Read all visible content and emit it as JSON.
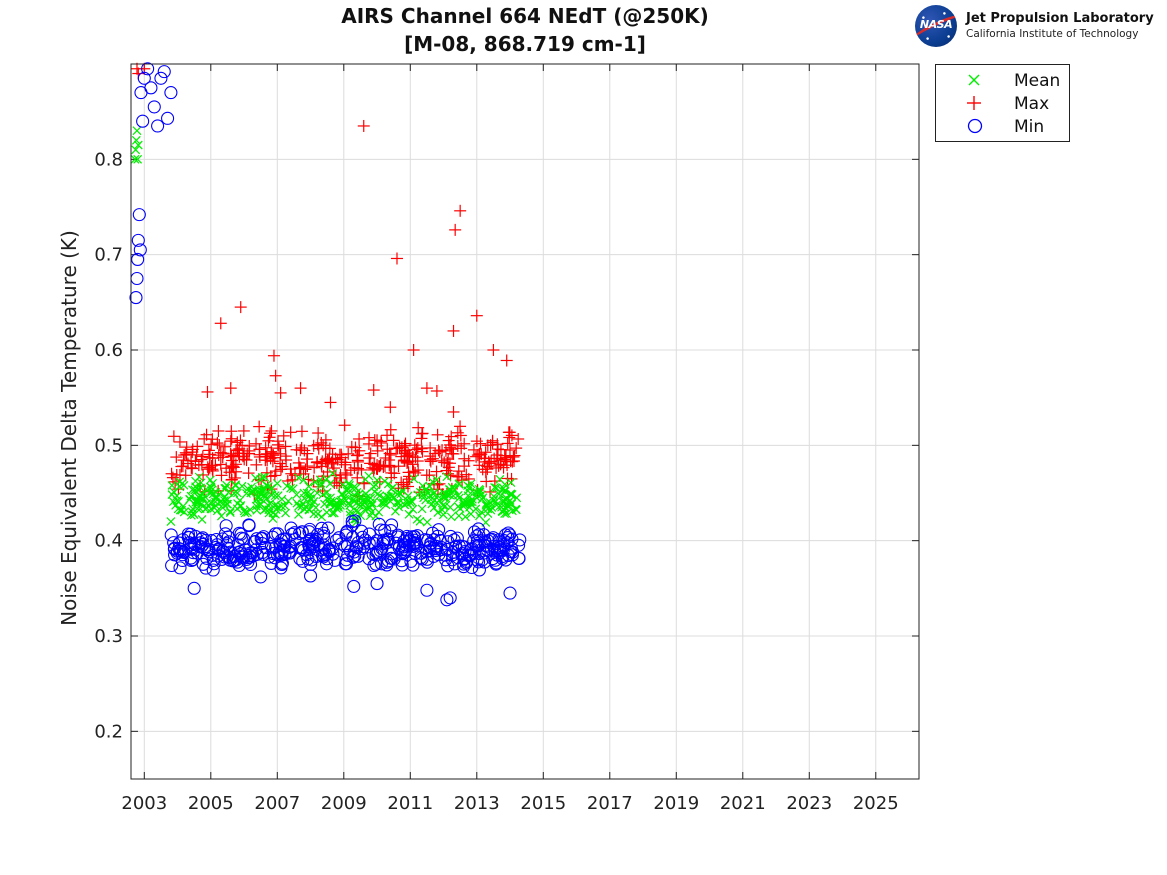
{
  "chart_data": {
    "type": "scatter",
    "title": "AIRS Channel 664 NEdT (@250K)",
    "subtitle": "[M-08, 868.719 cm-1]",
    "xlabel": "",
    "ylabel": "Noise Equivalent Delta Temperature (K)",
    "xlim": [
      2002.6,
      2026.3
    ],
    "ylim": [
      0.15,
      0.9
    ],
    "x_ticks": [
      "2003",
      "2005",
      "2007",
      "2009",
      "2011",
      "2013",
      "2015",
      "2017",
      "2019",
      "2021",
      "2023",
      "2025"
    ],
    "y_ticks": [
      "0.2",
      "0.3",
      "0.4",
      "0.5",
      "0.6",
      "0.7",
      "0.8"
    ],
    "grid": true,
    "legend_position": "outside-top-right",
    "series": [
      {
        "name": "Mean",
        "marker": "x",
        "color": "#00ee00",
        "points": [
          [
            2002.72,
            0.8
          ],
          [
            2002.74,
            0.81
          ],
          [
            2002.76,
            0.82
          ],
          [
            2002.78,
            0.83
          ],
          [
            2002.8,
            0.8
          ],
          [
            2002.82,
            0.815
          ],
          [
            2003.8,
            0.42
          ],
          [
            2004.2,
            0.43
          ],
          [
            2004.6,
            0.44
          ],
          [
            2005.0,
            0.44
          ],
          [
            2005.4,
            0.445
          ],
          [
            2005.8,
            0.45
          ],
          [
            2006.2,
            0.45
          ],
          [
            2006.6,
            0.455
          ],
          [
            2007.0,
            0.46
          ],
          [
            2007.4,
            0.455
          ],
          [
            2007.8,
            0.45
          ],
          [
            2008.2,
            0.45
          ],
          [
            2008.6,
            0.445
          ],
          [
            2009.0,
            0.44
          ],
          [
            2009.4,
            0.44
          ],
          [
            2009.8,
            0.44
          ],
          [
            2010.2,
            0.445
          ],
          [
            2010.6,
            0.44
          ],
          [
            2011.0,
            0.44
          ],
          [
            2011.4,
            0.445
          ],
          [
            2011.8,
            0.44
          ],
          [
            2012.2,
            0.435
          ],
          [
            2012.6,
            0.44
          ],
          [
            2013.0,
            0.445
          ],
          [
            2013.4,
            0.44
          ],
          [
            2013.8,
            0.44
          ],
          [
            2014.2,
            0.445
          ]
        ],
        "band": {
          "x_start": 2003.8,
          "x_end": 2014.3,
          "y_low": 0.41,
          "y_high": 0.475
        }
      },
      {
        "name": "Max",
        "marker": "+",
        "color": "#ff0000",
        "points": [
          [
            2002.78,
            0.895
          ],
          [
            2002.82,
            0.89
          ],
          [
            2003.0,
            0.895
          ],
          [
            2005.3,
            0.628
          ],
          [
            2005.9,
            0.645
          ],
          [
            2006.9,
            0.594
          ],
          [
            2006.95,
            0.573
          ],
          [
            2007.1,
            0.555
          ],
          [
            2009.6,
            0.835
          ],
          [
            2009.9,
            0.558
          ],
          [
            2010.6,
            0.696
          ],
          [
            2011.1,
            0.6
          ],
          [
            2011.5,
            0.56
          ],
          [
            2011.8,
            0.557
          ],
          [
            2012.3,
            0.62
          ],
          [
            2012.35,
            0.726
          ],
          [
            2012.5,
            0.746
          ],
          [
            2013.0,
            0.636
          ],
          [
            2013.5,
            0.6
          ],
          [
            2013.9,
            0.589
          ],
          [
            2004.9,
            0.556
          ],
          [
            2005.6,
            0.56
          ],
          [
            2007.7,
            0.56
          ],
          [
            2008.6,
            0.545
          ],
          [
            2010.4,
            0.54
          ],
          [
            2012.3,
            0.535
          ]
        ],
        "band": {
          "x_start": 2003.8,
          "x_end": 2014.3,
          "y_low": 0.44,
          "y_high": 0.53
        }
      },
      {
        "name": "Min",
        "marker": "o",
        "color": "#0000ff",
        "points": [
          [
            2002.75,
            0.655
          ],
          [
            2002.78,
            0.675
          ],
          [
            2002.8,
            0.695
          ],
          [
            2002.82,
            0.715
          ],
          [
            2002.85,
            0.742
          ],
          [
            2002.88,
            0.705
          ],
          [
            2002.9,
            0.87
          ],
          [
            2002.95,
            0.84
          ],
          [
            2003.0,
            0.885
          ],
          [
            2003.1,
            0.895
          ],
          [
            2003.2,
            0.875
          ],
          [
            2003.3,
            0.855
          ],
          [
            2003.4,
            0.835
          ],
          [
            2003.5,
            0.885
          ],
          [
            2003.6,
            0.892
          ],
          [
            2003.7,
            0.843
          ],
          [
            2003.8,
            0.87
          ],
          [
            2004.5,
            0.35
          ],
          [
            2009.3,
            0.352
          ],
          [
            2011.5,
            0.348
          ],
          [
            2012.1,
            0.338
          ],
          [
            2012.2,
            0.34
          ],
          [
            2014.0,
            0.345
          ],
          [
            2006.5,
            0.362
          ],
          [
            2008.0,
            0.363
          ],
          [
            2010.0,
            0.355
          ]
        ],
        "band": {
          "x_start": 2003.8,
          "x_end": 2014.3,
          "y_low": 0.36,
          "y_high": 0.425
        }
      }
    ]
  },
  "logo": {
    "agency": "NASA",
    "line1": "Jet Propulsion Laboratory",
    "line2": "California Institute of Technology"
  }
}
